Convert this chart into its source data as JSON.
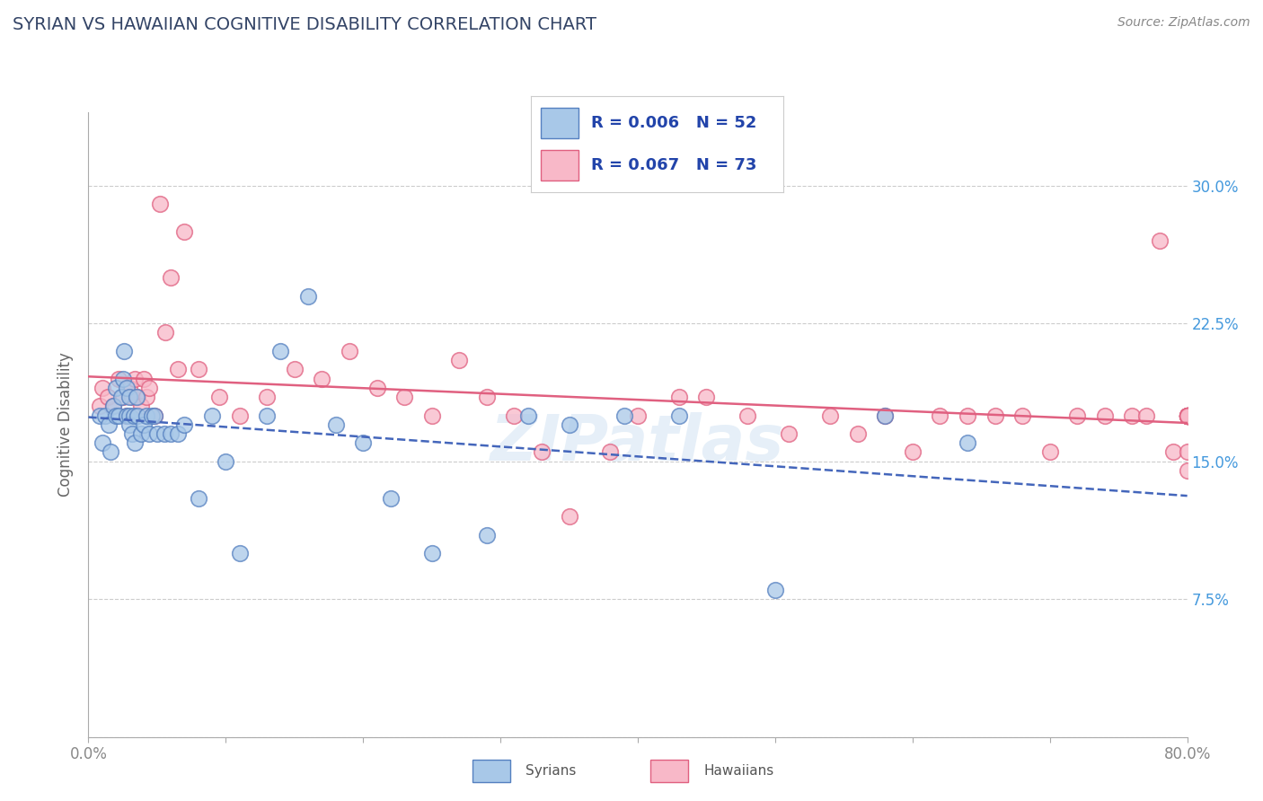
{
  "title": "SYRIAN VS HAWAIIAN COGNITIVE DISABILITY CORRELATION CHART",
  "source": "Source: ZipAtlas.com",
  "ylabel": "Cognitive Disability",
  "xlim": [
    0.0,
    0.8
  ],
  "ylim": [
    0.0,
    0.34
  ],
  "yticks": [
    0.0,
    0.075,
    0.15,
    0.225,
    0.3
  ],
  "yticklabels": [
    "",
    "7.5%",
    "15.0%",
    "22.5%",
    "30.0%"
  ],
  "xticks": [
    0.0,
    0.1,
    0.2,
    0.3,
    0.4,
    0.5,
    0.6,
    0.7,
    0.8
  ],
  "grid_color": "#cccccc",
  "background_color": "#ffffff",
  "syrians_fill": "#a8c8e8",
  "syrians_edge": "#5580c0",
  "hawaiians_fill": "#f8b8c8",
  "hawaiians_edge": "#e06080",
  "syrians_line_color": "#4466bb",
  "hawaiians_line_color": "#e06080",
  "R_syrians": 0.006,
  "N_syrians": 52,
  "R_hawaiians": 0.067,
  "N_hawaiians": 73,
  "legend_text_color": "#2244aa",
  "title_color": "#334466",
  "source_color": "#888888",
  "tick_color": "#888888",
  "right_tick_color": "#4499dd",
  "syrians_x": [
    0.008,
    0.01,
    0.012,
    0.015,
    0.016,
    0.018,
    0.02,
    0.02,
    0.022,
    0.024,
    0.025,
    0.026,
    0.028,
    0.028,
    0.03,
    0.03,
    0.03,
    0.032,
    0.033,
    0.034,
    0.035,
    0.036,
    0.038,
    0.04,
    0.042,
    0.044,
    0.046,
    0.048,
    0.05,
    0.055,
    0.06,
    0.065,
    0.07,
    0.08,
    0.09,
    0.1,
    0.11,
    0.13,
    0.14,
    0.16,
    0.18,
    0.2,
    0.22,
    0.25,
    0.29,
    0.32,
    0.35,
    0.39,
    0.43,
    0.5,
    0.58,
    0.64
  ],
  "syrians_y": [
    0.175,
    0.16,
    0.175,
    0.17,
    0.155,
    0.18,
    0.19,
    0.175,
    0.175,
    0.185,
    0.195,
    0.21,
    0.19,
    0.175,
    0.185,
    0.175,
    0.17,
    0.165,
    0.175,
    0.16,
    0.185,
    0.175,
    0.165,
    0.17,
    0.175,
    0.165,
    0.175,
    0.175,
    0.165,
    0.165,
    0.165,
    0.165,
    0.17,
    0.13,
    0.175,
    0.15,
    0.1,
    0.175,
    0.21,
    0.24,
    0.17,
    0.16,
    0.13,
    0.1,
    0.11,
    0.175,
    0.17,
    0.175,
    0.175,
    0.08,
    0.175,
    0.16
  ],
  "hawaiians_x": [
    0.008,
    0.01,
    0.014,
    0.018,
    0.022,
    0.025,
    0.028,
    0.03,
    0.032,
    0.034,
    0.036,
    0.038,
    0.04,
    0.042,
    0.044,
    0.048,
    0.052,
    0.056,
    0.06,
    0.065,
    0.07,
    0.08,
    0.095,
    0.11,
    0.13,
    0.15,
    0.17,
    0.19,
    0.21,
    0.23,
    0.25,
    0.27,
    0.29,
    0.31,
    0.33,
    0.35,
    0.38,
    0.4,
    0.43,
    0.45,
    0.48,
    0.51,
    0.54,
    0.56,
    0.58,
    0.6,
    0.62,
    0.64,
    0.66,
    0.68,
    0.7,
    0.72,
    0.74,
    0.76,
    0.77,
    0.78,
    0.79,
    0.8,
    0.8,
    0.8,
    0.8,
    0.8,
    0.8,
    0.8,
    0.8,
    0.8,
    0.8,
    0.8,
    0.8,
    0.8,
    0.8,
    0.8,
    0.8
  ],
  "hawaiians_y": [
    0.18,
    0.19,
    0.185,
    0.18,
    0.195,
    0.185,
    0.175,
    0.19,
    0.185,
    0.195,
    0.185,
    0.18,
    0.195,
    0.185,
    0.19,
    0.175,
    0.29,
    0.22,
    0.25,
    0.2,
    0.275,
    0.2,
    0.185,
    0.175,
    0.185,
    0.2,
    0.195,
    0.21,
    0.19,
    0.185,
    0.175,
    0.205,
    0.185,
    0.175,
    0.155,
    0.12,
    0.155,
    0.175,
    0.185,
    0.185,
    0.175,
    0.165,
    0.175,
    0.165,
    0.175,
    0.155,
    0.175,
    0.175,
    0.175,
    0.175,
    0.155,
    0.175,
    0.175,
    0.175,
    0.175,
    0.27,
    0.155,
    0.175,
    0.175,
    0.175,
    0.175,
    0.175,
    0.175,
    0.145,
    0.175,
    0.175,
    0.155,
    0.175,
    0.175,
    0.175,
    0.175,
    0.175,
    0.175
  ]
}
